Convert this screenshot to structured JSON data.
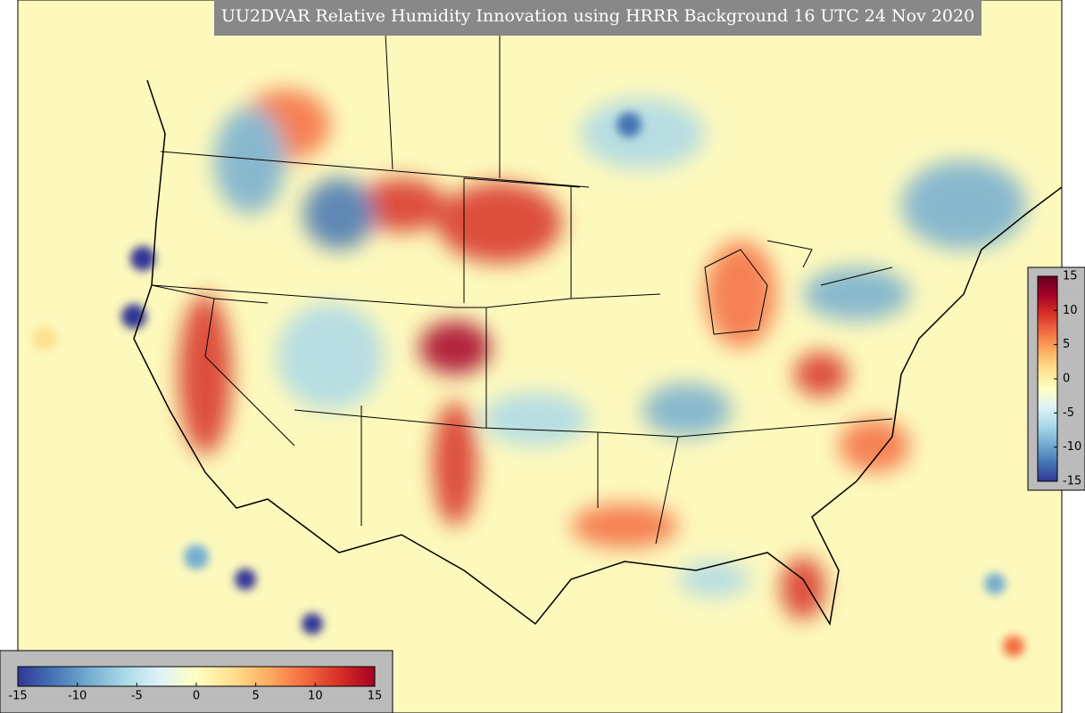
{
  "title": "UU2DVAR Relative Humidity Innovation using HRRR Background 16 UTC 24 Nov 2020",
  "colorbar_vertical": {
    "lim": [
      -15,
      15
    ],
    "ticks": [
      -15,
      -10,
      -5,
      0,
      5,
      10,
      15
    ],
    "colors": [
      "#313695",
      "#4575b4",
      "#74add1",
      "#abd9e9",
      "#e0f3f8",
      "#ffffbf",
      "#fee090",
      "#fdae61",
      "#f46d43",
      "#d73027",
      "#a50026",
      "#67001f"
    ]
  },
  "colorbar_horizontal": {
    "lim": [
      -15,
      15
    ],
    "ticks": [
      -15,
      -10,
      -5,
      0,
      5,
      10,
      15
    ],
    "colors": [
      "#313695",
      "#4575b4",
      "#74add1",
      "#abd9e9",
      "#e0f3f8",
      "#ffffbf",
      "#fee090",
      "#fdae61",
      "#f46d43",
      "#d73027",
      "#a50026"
    ]
  }
}
